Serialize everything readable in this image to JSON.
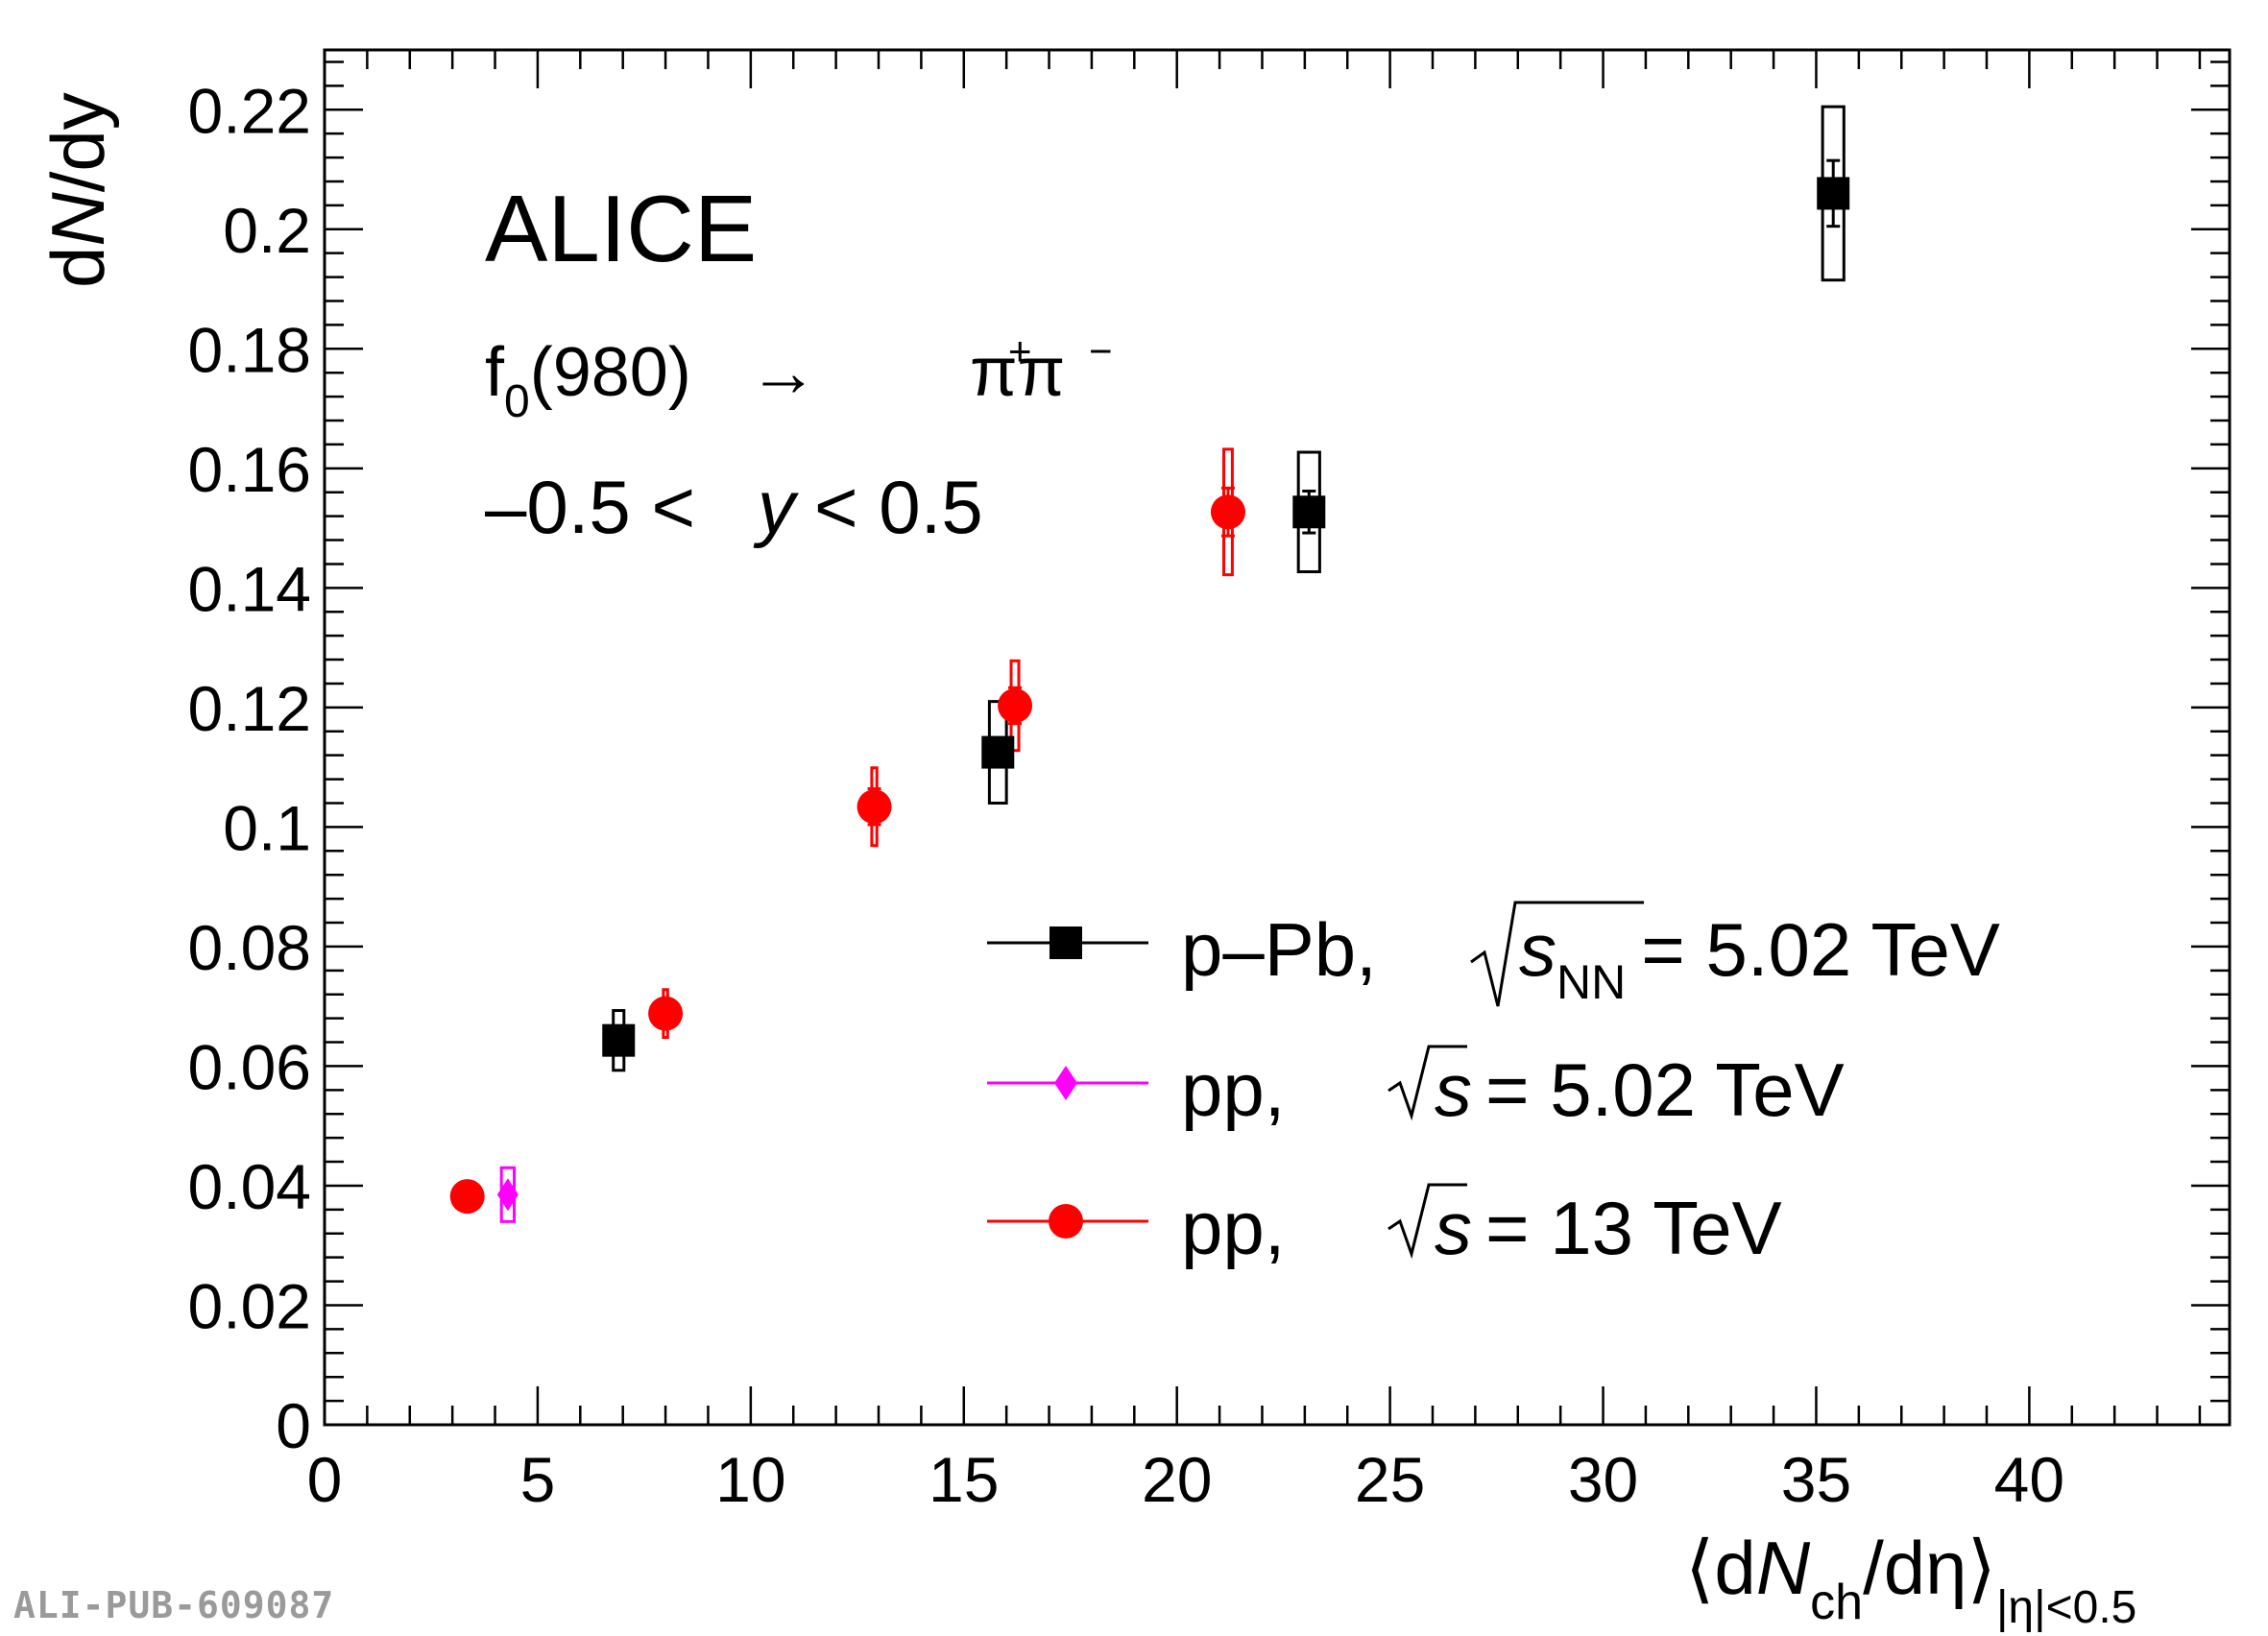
{
  "experiment": "ALICE",
  "process": {
    "particle": "f",
    "sub": "0",
    "mass": "(980)",
    "arrow": "→",
    "products": "ππ",
    "plus": "+",
    "minus": "−"
  },
  "rapidity": {
    "left": "–0.5 <",
    "var": "y",
    "right": "< 0.5"
  },
  "watermark": "ALI-PUB-609087",
  "colors": {
    "ppb": "#000000",
    "pp502": "#ff00ff",
    "pp13": "#ff0000"
  },
  "legend_entries": [
    {
      "id": "ppb",
      "system": "p–Pb,",
      "sqrt_var": "s",
      "sqrt_sub": "NN",
      "energy": "= 5.02 TeV"
    },
    {
      "id": "pp502",
      "system": "pp,",
      "sqrt_var": "s",
      "sqrt_sub": "",
      "energy": "= 5.02 TeV"
    },
    {
      "id": "pp13",
      "system": "pp,",
      "sqrt_var": "s",
      "sqrt_sub": "",
      "energy": "= 13 TeV"
    }
  ],
  "chart_data": {
    "type": "scatter",
    "xlim": [
      0,
      44.7
    ],
    "ylim": [
      0,
      0.23
    ],
    "xticks": [
      0,
      5,
      10,
      15,
      20,
      25,
      30,
      35,
      40
    ],
    "xtick_labels": [
      "0",
      "5",
      "10",
      "15",
      "20",
      "25",
      "30",
      "35",
      "40"
    ],
    "yticks": [
      0,
      0.02,
      0.04,
      0.06,
      0.08,
      0.1,
      0.12,
      0.14,
      0.16,
      0.18,
      0.2,
      0.22
    ],
    "ytick_labels": [
      "0",
      "0.02",
      "0.04",
      "0.06",
      "0.08",
      "0.1",
      "0.12",
      "0.14",
      "0.16",
      "0.18",
      "0.2",
      "0.22"
    ],
    "ylabel": {
      "a": "d",
      "b": "N",
      "c": "/dy"
    },
    "xlabel": {
      "open": "⟨d",
      "N": "N",
      "sub": "ch",
      "mid": "/dη",
      "close": "⟩",
      "range": "|η|<0.5"
    },
    "legend_position": "right",
    "grid": false,
    "series": [
      {
        "name": "p–Pb, √sNN = 5.02 TeV",
        "marker": "square",
        "color": "#000000",
        "points": [
          {
            "x": 6.9,
            "y": 0.0643,
            "stat": 0.002,
            "sys": 0.005,
            "box_w": 0.25
          },
          {
            "x": 15.8,
            "y": 0.1125,
            "stat": 0.002,
            "sys": 0.0085,
            "box_w": 0.4
          },
          {
            "x": 23.1,
            "y": 0.1527,
            "stat": 0.0035,
            "sys": 0.01,
            "box_w": 0.5
          },
          {
            "x": 35.4,
            "y": 0.206,
            "stat": 0.0055,
            "sys": 0.0145,
            "box_w": 0.5
          }
        ]
      },
      {
        "name": "pp, √s = 5.02 TeV",
        "marker": "diamond",
        "color": "#ff00ff",
        "points": [
          {
            "x": 4.3,
            "y": 0.0385,
            "stat": 0.0012,
            "sys": 0.0045,
            "box_w": 0.3
          }
        ]
      },
      {
        "name": "pp, √s = 13 TeV",
        "marker": "circle",
        "color": "#ff0000",
        "points": [
          {
            "x": 3.35,
            "y": 0.0382,
            "stat": 0.001,
            "sys": 0.0,
            "box_w": 0.0
          },
          {
            "x": 8.0,
            "y": 0.0688,
            "stat": 0.002,
            "sys": 0.004,
            "box_w": 0.1
          },
          {
            "x": 12.9,
            "y": 0.1034,
            "stat": 0.003,
            "sys": 0.0065,
            "box_w": 0.12
          },
          {
            "x": 16.2,
            "y": 0.1203,
            "stat": 0.003,
            "sys": 0.0075,
            "box_w": 0.18
          },
          {
            "x": 21.2,
            "y": 0.1527,
            "stat": 0.004,
            "sys": 0.0105,
            "box_w": 0.2
          }
        ]
      }
    ]
  }
}
